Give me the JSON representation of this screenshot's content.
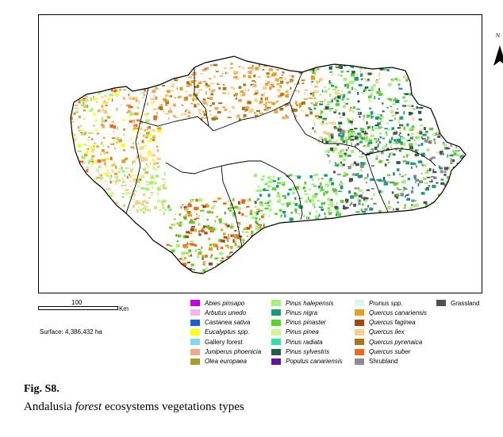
{
  "map": {
    "north_label": "N",
    "scale_label": "100",
    "scale_unit": "Km",
    "surface": "Surface: 4,386,432 ha",
    "outline_color": "#000000"
  },
  "legend": {
    "items": [
      {
        "label": "Abies pinsapo",
        "italic": true,
        "color": "#c000e0"
      },
      {
        "label": "Arbutus unedo",
        "italic": true,
        "color": "#f4b6ea"
      },
      {
        "label": "Castanea sativa",
        "italic": true,
        "color": "#1a5fd6"
      },
      {
        "label": "Eucalyptus spp.",
        "italic": true,
        "color": "#ffff00"
      },
      {
        "label": "Gallery forest",
        "italic": false,
        "color": "#7fd8f0"
      },
      {
        "label": "Juniperus phoenicia",
        "italic": true,
        "color": "#f4a98a"
      },
      {
        "label": "Olea europaea",
        "italic": true,
        "color": "#a8a020"
      },
      {
        "label": "Pinus halepensis",
        "italic": true,
        "color": "#a4f07a"
      },
      {
        "label": "Pinus nigra",
        "italic": true,
        "color": "#1a9a7a"
      },
      {
        "label": "Pinus pinaster",
        "italic": true,
        "color": "#5ad22a"
      },
      {
        "label": "Pinus pinea",
        "italic": true,
        "color": "#d4f596"
      },
      {
        "label": "Pinus radiata",
        "italic": true,
        "color": "#30e0b0"
      },
      {
        "label": "Pinus sylvestris",
        "italic": true,
        "color": "#20604a"
      },
      {
        "label": "Populus canariensis",
        "italic": true,
        "color": "#6a10a0"
      },
      {
        "label": "Prunus spp.",
        "italic": true,
        "color": "#dcf7e8"
      },
      {
        "label": "Quercus canariensis",
        "italic": true,
        "color": "#e4a020"
      },
      {
        "label": "Quercus faginea",
        "italic": true,
        "color": "#a84410"
      },
      {
        "label": "Quercus ilex",
        "italic": true,
        "color": "#f7d090"
      },
      {
        "label": "Quercus pyrenaica",
        "italic": true,
        "color": "#a87818"
      },
      {
        "label": "Quercus suber",
        "italic": true,
        "color": "#f06818"
      },
      {
        "label": "Shrubland",
        "italic": false,
        "color": "#8c8c8c"
      },
      {
        "label": "Grassland",
        "italic": false,
        "color": "#505050"
      }
    ]
  },
  "caption": {
    "fig_label": "Fig. S8.",
    "text_before": "Andalusia ",
    "text_italic": "forest",
    "text_after": " ecosystems vegetations types"
  }
}
